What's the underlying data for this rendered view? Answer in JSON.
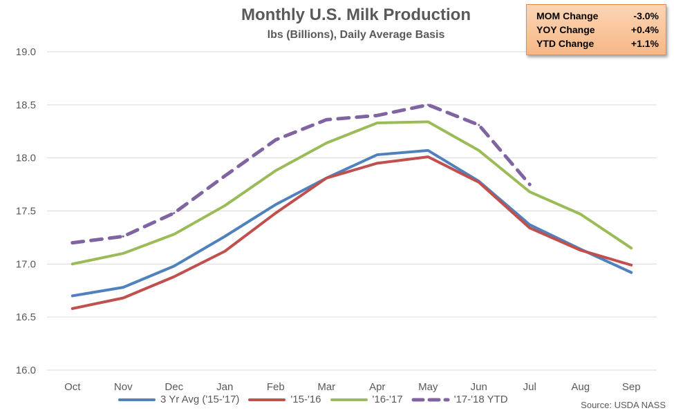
{
  "chart_data": {
    "type": "line",
    "title": "Monthly U.S. Milk Production",
    "subtitle": "lbs (Billions), Daily Average Basis",
    "categories": [
      "Oct",
      "Nov",
      "Dec",
      "Jan",
      "Feb",
      "Mar",
      "Apr",
      "May",
      "Jun",
      "Jul",
      "Aug",
      "Sep"
    ],
    "ylim": [
      16.0,
      19.0
    ],
    "yticks": [
      "16.0",
      "16.5",
      "17.0",
      "17.5",
      "18.0",
      "18.5",
      "19.0"
    ],
    "grid": true,
    "legend_position": "bottom",
    "series": [
      {
        "name": "3 Yr Avg ('15-'17)",
        "color": "#4f81bd",
        "dash": false,
        "values": [
          16.7,
          16.78,
          16.98,
          17.26,
          17.56,
          17.81,
          18.03,
          18.07,
          17.78,
          17.37,
          17.14,
          16.92
        ]
      },
      {
        "name": "'15-'16",
        "color": "#c0504d",
        "dash": false,
        "values": [
          16.58,
          16.68,
          16.88,
          17.12,
          17.48,
          17.81,
          17.95,
          18.01,
          17.77,
          17.34,
          17.13,
          16.99
        ]
      },
      {
        "name": "'16-'17",
        "color": "#9bbb59",
        "dash": false,
        "values": [
          17.0,
          17.1,
          17.28,
          17.55,
          17.88,
          18.14,
          18.33,
          18.34,
          18.07,
          17.68,
          17.47,
          17.15
        ]
      },
      {
        "name": "'17-'18 YTD",
        "color": "#8064a2",
        "dash": true,
        "values": [
          17.2,
          17.26,
          17.48,
          17.83,
          18.17,
          18.36,
          18.4,
          18.5,
          18.31,
          17.75,
          null,
          null
        ]
      }
    ]
  },
  "stats": [
    {
      "label": "MOM Change",
      "value": "-3.0%"
    },
    {
      "label": "YOY Change",
      "value": "+0.4%"
    },
    {
      "label": "YTD Change",
      "value": "+1.1%"
    }
  ],
  "source": "Source: USDA NASS"
}
